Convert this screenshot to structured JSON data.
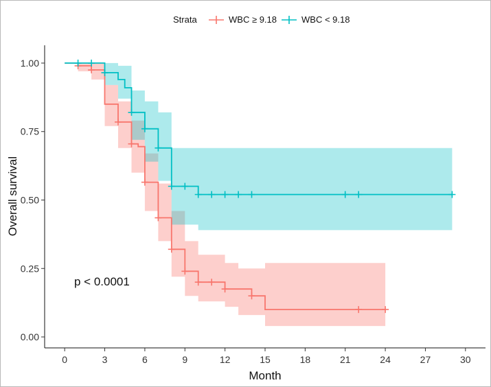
{
  "chart_data": {
    "type": "line",
    "subtype": "kaplan-meier",
    "xlabel": "Month",
    "ylabel": "Overall survival",
    "xlim": [
      -1.5,
      31.5
    ],
    "ylim": [
      -0.04,
      1.06
    ],
    "xticks": [
      0,
      3,
      6,
      9,
      12,
      15,
      18,
      21,
      24,
      27,
      30
    ],
    "xtick_labels": [
      "0",
      "3",
      "6",
      "9",
      "12",
      "15",
      "18",
      "21",
      "24",
      "27",
      "30"
    ],
    "yticks": [
      0,
      0.25,
      0.5,
      0.75,
      1
    ],
    "ytick_labels": [
      "0.00",
      "0.25",
      "0.50",
      "0.75",
      "1.00"
    ],
    "legend": {
      "title": "Strata",
      "position": "top"
    },
    "annotation": "p < 0.0001",
    "series": [
      {
        "name": "WBC ≥ 9.18",
        "color": "#F8766D",
        "steps": [
          [
            0,
            1.0
          ],
          [
            1,
            0.99
          ],
          [
            2,
            0.975
          ],
          [
            3,
            0.85
          ],
          [
            4,
            0.785
          ],
          [
            5,
            0.705
          ],
          [
            5.5,
            0.695
          ],
          [
            6,
            0.565
          ],
          [
            7,
            0.435
          ],
          [
            8,
            0.32
          ],
          [
            9,
            0.24
          ],
          [
            10,
            0.2
          ],
          [
            11,
            0.2
          ],
          [
            12,
            0.175
          ],
          [
            13,
            0.175
          ],
          [
            14,
            0.15
          ],
          [
            15,
            0.1
          ],
          [
            24,
            0.1
          ]
        ],
        "ci_steps": [
          [
            0,
            1.0,
            1.0
          ],
          [
            1,
            0.97,
            1.0
          ],
          [
            2,
            0.94,
            1.0
          ],
          [
            3,
            0.77,
            0.92
          ],
          [
            4,
            0.69,
            0.86
          ],
          [
            5,
            0.6,
            0.79
          ],
          [
            6,
            0.46,
            0.67
          ],
          [
            7,
            0.35,
            0.56
          ],
          [
            8,
            0.22,
            0.46
          ],
          [
            9,
            0.15,
            0.35
          ],
          [
            10,
            0.13,
            0.3
          ],
          [
            12,
            0.11,
            0.27
          ],
          [
            13,
            0.08,
            0.25
          ],
          [
            15,
            0.04,
            0.27
          ],
          [
            24,
            0.04,
            0.27
          ]
        ],
        "censor_times": [
          1,
          2,
          4,
          5,
          6,
          7,
          8,
          9,
          10,
          11,
          12,
          14,
          22,
          24
        ]
      },
      {
        "name": "WBC < 9.18",
        "color": "#00BFC4",
        "steps": [
          [
            0,
            1.0
          ],
          [
            1,
            1.0
          ],
          [
            3,
            0.965
          ],
          [
            4,
            0.94
          ],
          [
            4.5,
            0.91
          ],
          [
            5,
            0.82
          ],
          [
            6,
            0.76
          ],
          [
            7,
            0.69
          ],
          [
            8,
            0.55
          ],
          [
            9,
            0.55
          ],
          [
            10,
            0.52
          ],
          [
            29,
            0.52
          ]
        ],
        "ci_steps": [
          [
            0,
            1.0,
            1.0
          ],
          [
            1,
            1.0,
            1.0
          ],
          [
            3,
            0.92,
            1.0
          ],
          [
            4,
            0.87,
            0.99
          ],
          [
            5,
            0.72,
            0.9
          ],
          [
            6,
            0.64,
            0.86
          ],
          [
            7,
            0.57,
            0.82
          ],
          [
            8,
            0.41,
            0.69
          ],
          [
            10,
            0.39,
            0.69
          ],
          [
            29,
            0.39,
            0.69
          ]
        ],
        "censor_times": [
          1,
          2,
          3,
          5,
          6,
          7,
          8,
          9,
          10,
          11,
          12,
          13,
          14,
          21,
          22,
          29
        ]
      }
    ]
  }
}
